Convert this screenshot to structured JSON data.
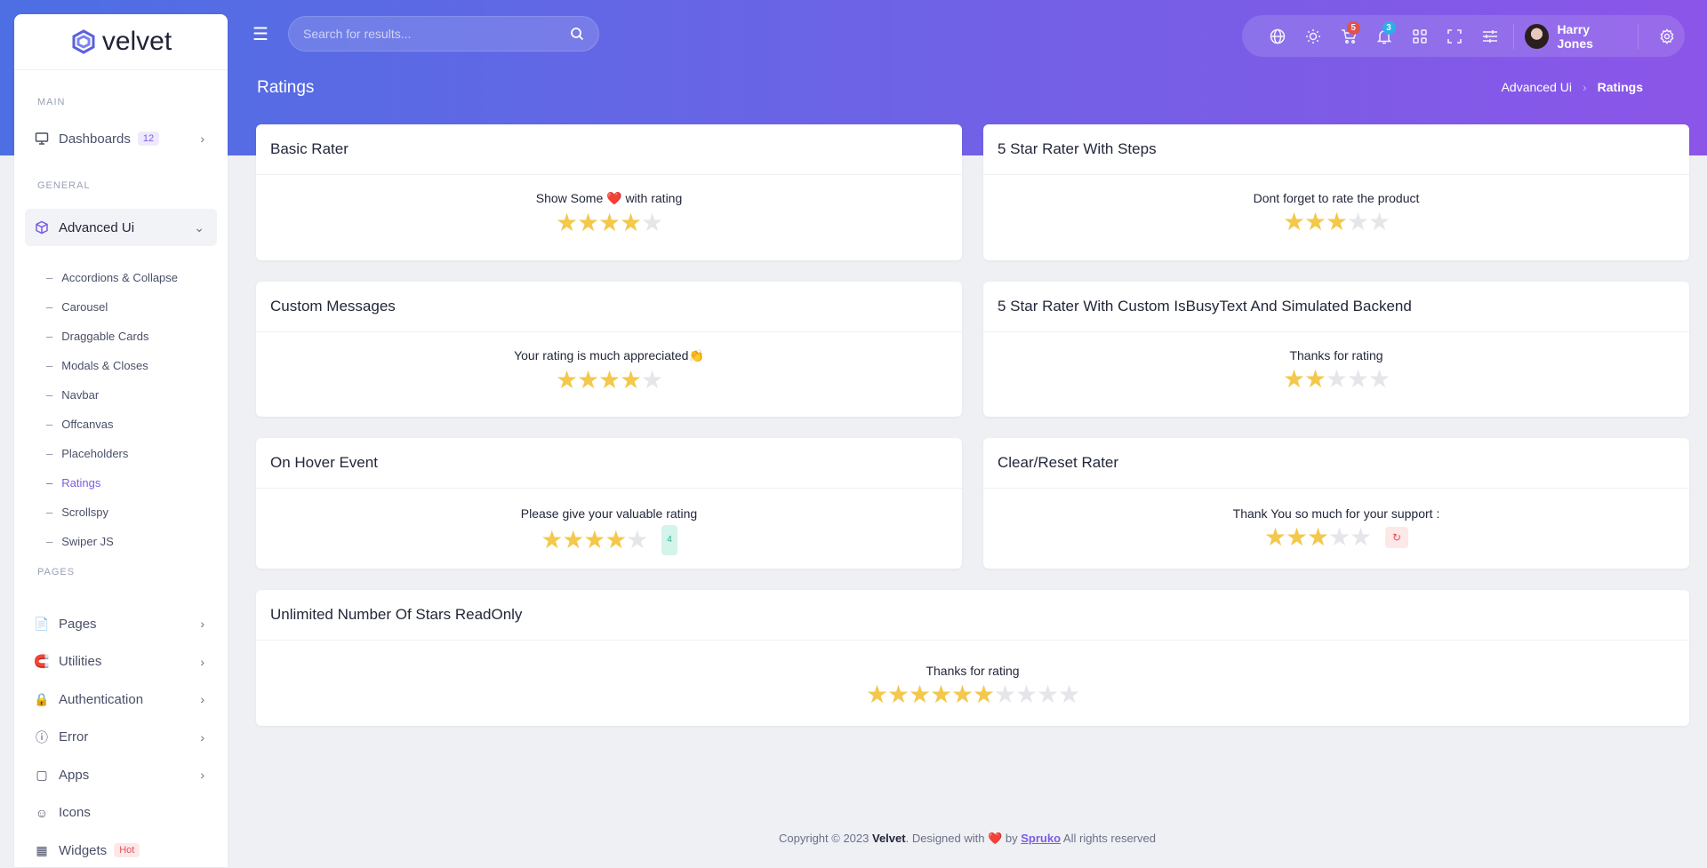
{
  "brand": {
    "name": "velvet"
  },
  "sidebar": {
    "categories": [
      "MAIN",
      "GENERAL",
      "PAGES"
    ],
    "dashboards": {
      "label": "Dashboards",
      "badge": "12"
    },
    "advanced": {
      "label": "Advanced Ui"
    },
    "submenu": [
      "Accordions & Collapse",
      "Carousel",
      "Draggable Cards",
      "Modals & Closes",
      "Navbar",
      "Offcanvas",
      "Placeholders",
      "Ratings",
      "Scrollspy",
      "Swiper JS"
    ],
    "pages": [
      {
        "label": "Pages"
      },
      {
        "label": "Utilities"
      },
      {
        "label": "Authentication"
      },
      {
        "label": "Error"
      },
      {
        "label": "Apps"
      },
      {
        "label": "Icons"
      },
      {
        "label": "Widgets",
        "badge": "Hot"
      }
    ]
  },
  "header": {
    "search_placeholder": "Search for results...",
    "cart_count": "5",
    "notif_count": "3",
    "user": "Harry Jones"
  },
  "page": {
    "title": "Ratings",
    "breadcrumb": [
      "Advanced Ui",
      "Ratings"
    ]
  },
  "cards": [
    {
      "title": "Basic Rater",
      "text": "Show Some ❤️ with rating",
      "rating": 4,
      "max": 5
    },
    {
      "title": "5 Star Rater With Steps",
      "text": "Dont forget to rate the product",
      "rating": 3,
      "max": 5
    },
    {
      "title": "Custom Messages",
      "text": "Your rating is much appreciated👏",
      "rating": 4,
      "max": 5
    },
    {
      "title": "5 Star Rater With Custom IsBusyText And Simulated Backend",
      "text": "Thanks for rating",
      "rating": 2,
      "max": 5
    },
    {
      "title": "On Hover Event",
      "text": "Please give your valuable rating",
      "rating": 4,
      "max": 5,
      "value_label": "4"
    },
    {
      "title": "Clear/Reset Rater",
      "text": "Thank You so much for your support :",
      "rating": 3,
      "max": 5
    },
    {
      "title": "Unlimited Number Of Stars ReadOnly",
      "text": "Thanks for rating",
      "rating": 6,
      "max": 10
    }
  ],
  "footer": {
    "prefix": "Copyright © 2023 ",
    "brand": "Velvet",
    "mid": ". Designed with ❤️ by ",
    "author": "Spruko",
    "suffix": " All rights reserved"
  },
  "colors": {
    "star": "#f3c84b",
    "accent": "#7c5ce6",
    "cart_badge": "#e8503a",
    "notif_badge": "#1eb8e6"
  }
}
